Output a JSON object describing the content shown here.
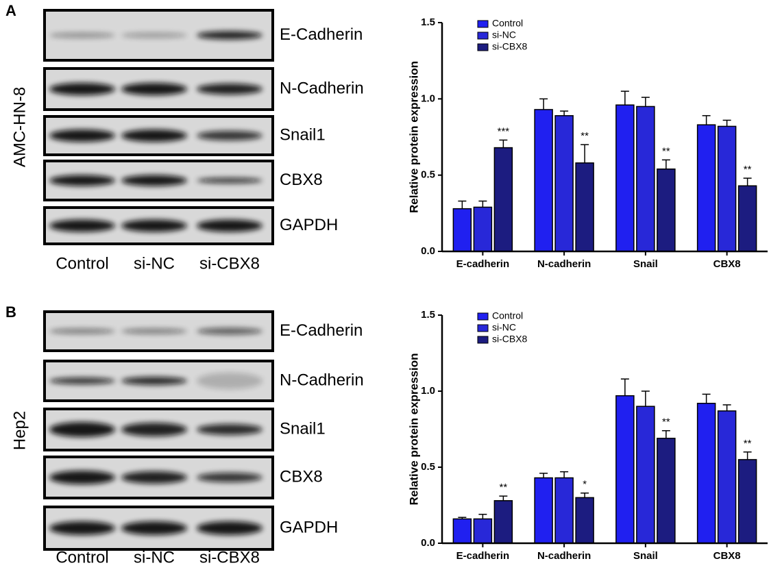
{
  "blots": [
    {
      "panel": "A",
      "cell_line": "AMC-HN-8",
      "proteins": [
        "E-Cadherin",
        "N-Cadherin",
        "Snail1",
        "CBX8",
        "GAPDH"
      ],
      "lanes": [
        "Control",
        "si-NC",
        "si-CBX8"
      ]
    },
    {
      "panel": "B",
      "cell_line": "Hep2",
      "proteins": [
        "E-Cadherin",
        "N-Cadherin",
        "Snail1",
        "CBX8",
        "GAPDH"
      ],
      "lanes": [
        "Control",
        "si-NC",
        "si-CBX8"
      ]
    }
  ],
  "chart_data": [
    {
      "type": "bar",
      "y_label": "Relative protein expression",
      "categories": [
        "E-cadherin",
        "N-cadherin",
        "Snail",
        "CBX8"
      ],
      "series": [
        {
          "name": "Control",
          "color": "#2020f0",
          "values": [
            0.28,
            0.93,
            0.96,
            0.83
          ],
          "errors": [
            0.05,
            0.07,
            0.09,
            0.06
          ]
        },
        {
          "name": "si-NC",
          "color": "#2828d8",
          "values": [
            0.29,
            0.89,
            0.95,
            0.82
          ],
          "errors": [
            0.04,
            0.03,
            0.06,
            0.04
          ]
        },
        {
          "name": "si-CBX8",
          "color": "#1c1c80",
          "values": [
            0.68,
            0.58,
            0.54,
            0.43
          ],
          "errors": [
            0.05,
            0.12,
            0.06,
            0.05
          ],
          "annotations": [
            "***",
            "**",
            "**",
            "**"
          ]
        }
      ],
      "ylim": [
        0,
        1.5
      ],
      "yticks": [
        {
          "value": 0,
          "label": "0.0"
        },
        0.5,
        {
          "value": 1,
          "label": "1.0"
        },
        1.5
      ],
      "grid": false
    },
    {
      "type": "bar",
      "y_label": "Relative protein expression",
      "categories": [
        "E-cadherin",
        "N-cadherin",
        "Snail",
        "CBX8"
      ],
      "series": [
        {
          "name": "Control",
          "color": "#2020f0",
          "values": [
            0.16,
            0.43,
            0.97,
            0.92
          ],
          "errors": [
            0.01,
            0.03,
            0.11,
            0.06
          ]
        },
        {
          "name": "si-NC",
          "color": "#2828d8",
          "values": [
            0.16,
            0.43,
            0.9,
            0.87
          ],
          "errors": [
            0.03,
            0.04,
            0.1,
            0.04
          ]
        },
        {
          "name": "si-CBX8",
          "color": "#1c1c80",
          "values": [
            0.28,
            0.3,
            0.69,
            0.55
          ],
          "errors": [
            0.03,
            0.03,
            0.05,
            0.05
          ],
          "annotations": [
            "**",
            "*",
            "**",
            "**"
          ]
        }
      ],
      "ylim": [
        0,
        1.5
      ],
      "yticks": [
        {
          "value": 0,
          "label": "0.0"
        },
        0.5,
        {
          "value": 1,
          "label": "1.0"
        },
        1.5
      ],
      "grid": false
    }
  ]
}
